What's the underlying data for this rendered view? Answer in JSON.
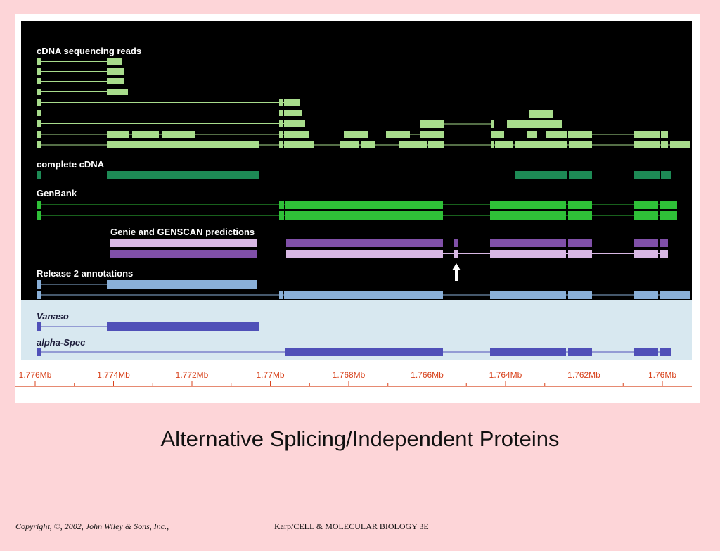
{
  "figure": {
    "labels": {
      "cdna_reads": "cDNA sequencing reads",
      "complete_cdna": "complete cDNA",
      "genbank": "GenBank",
      "predictions": "Genie and GENSCAN predictions",
      "release2": "Release 2 annotations",
      "vanaso": "Vanaso",
      "alpha_spec": "alpha-Spec"
    },
    "colors": {
      "panel_bg": "#000000",
      "lower_bg": "#d8e8f0",
      "cdna_reads": "#a8dc8c",
      "complete_cdna": "#1d8a55",
      "genbank": "#2fc038",
      "prediction_purple": "#8050a8",
      "prediction_light": "#d8b8e4",
      "release2": "#8ab0d8",
      "gene_model": "#5050b8",
      "axis": "#d8431d"
    },
    "arrow_icon": "up-arrow-icon",
    "axis_ticks": [
      "1.776Mb",
      "1.774Mb",
      "1.772Mb",
      "1.77Mb",
      "1.768Mb",
      "1.766Mb",
      "1.764Mb",
      "1.762Mb",
      "1.76Mb"
    ]
  },
  "title": "Alternative Splicing/Independent Proteins",
  "footer": {
    "copyright": "Copyright, ©, 2002, John Wiley & Sons, Inc.,",
    "book": "Karp/CELL & MOLECULAR BIOLOGY 3E"
  }
}
